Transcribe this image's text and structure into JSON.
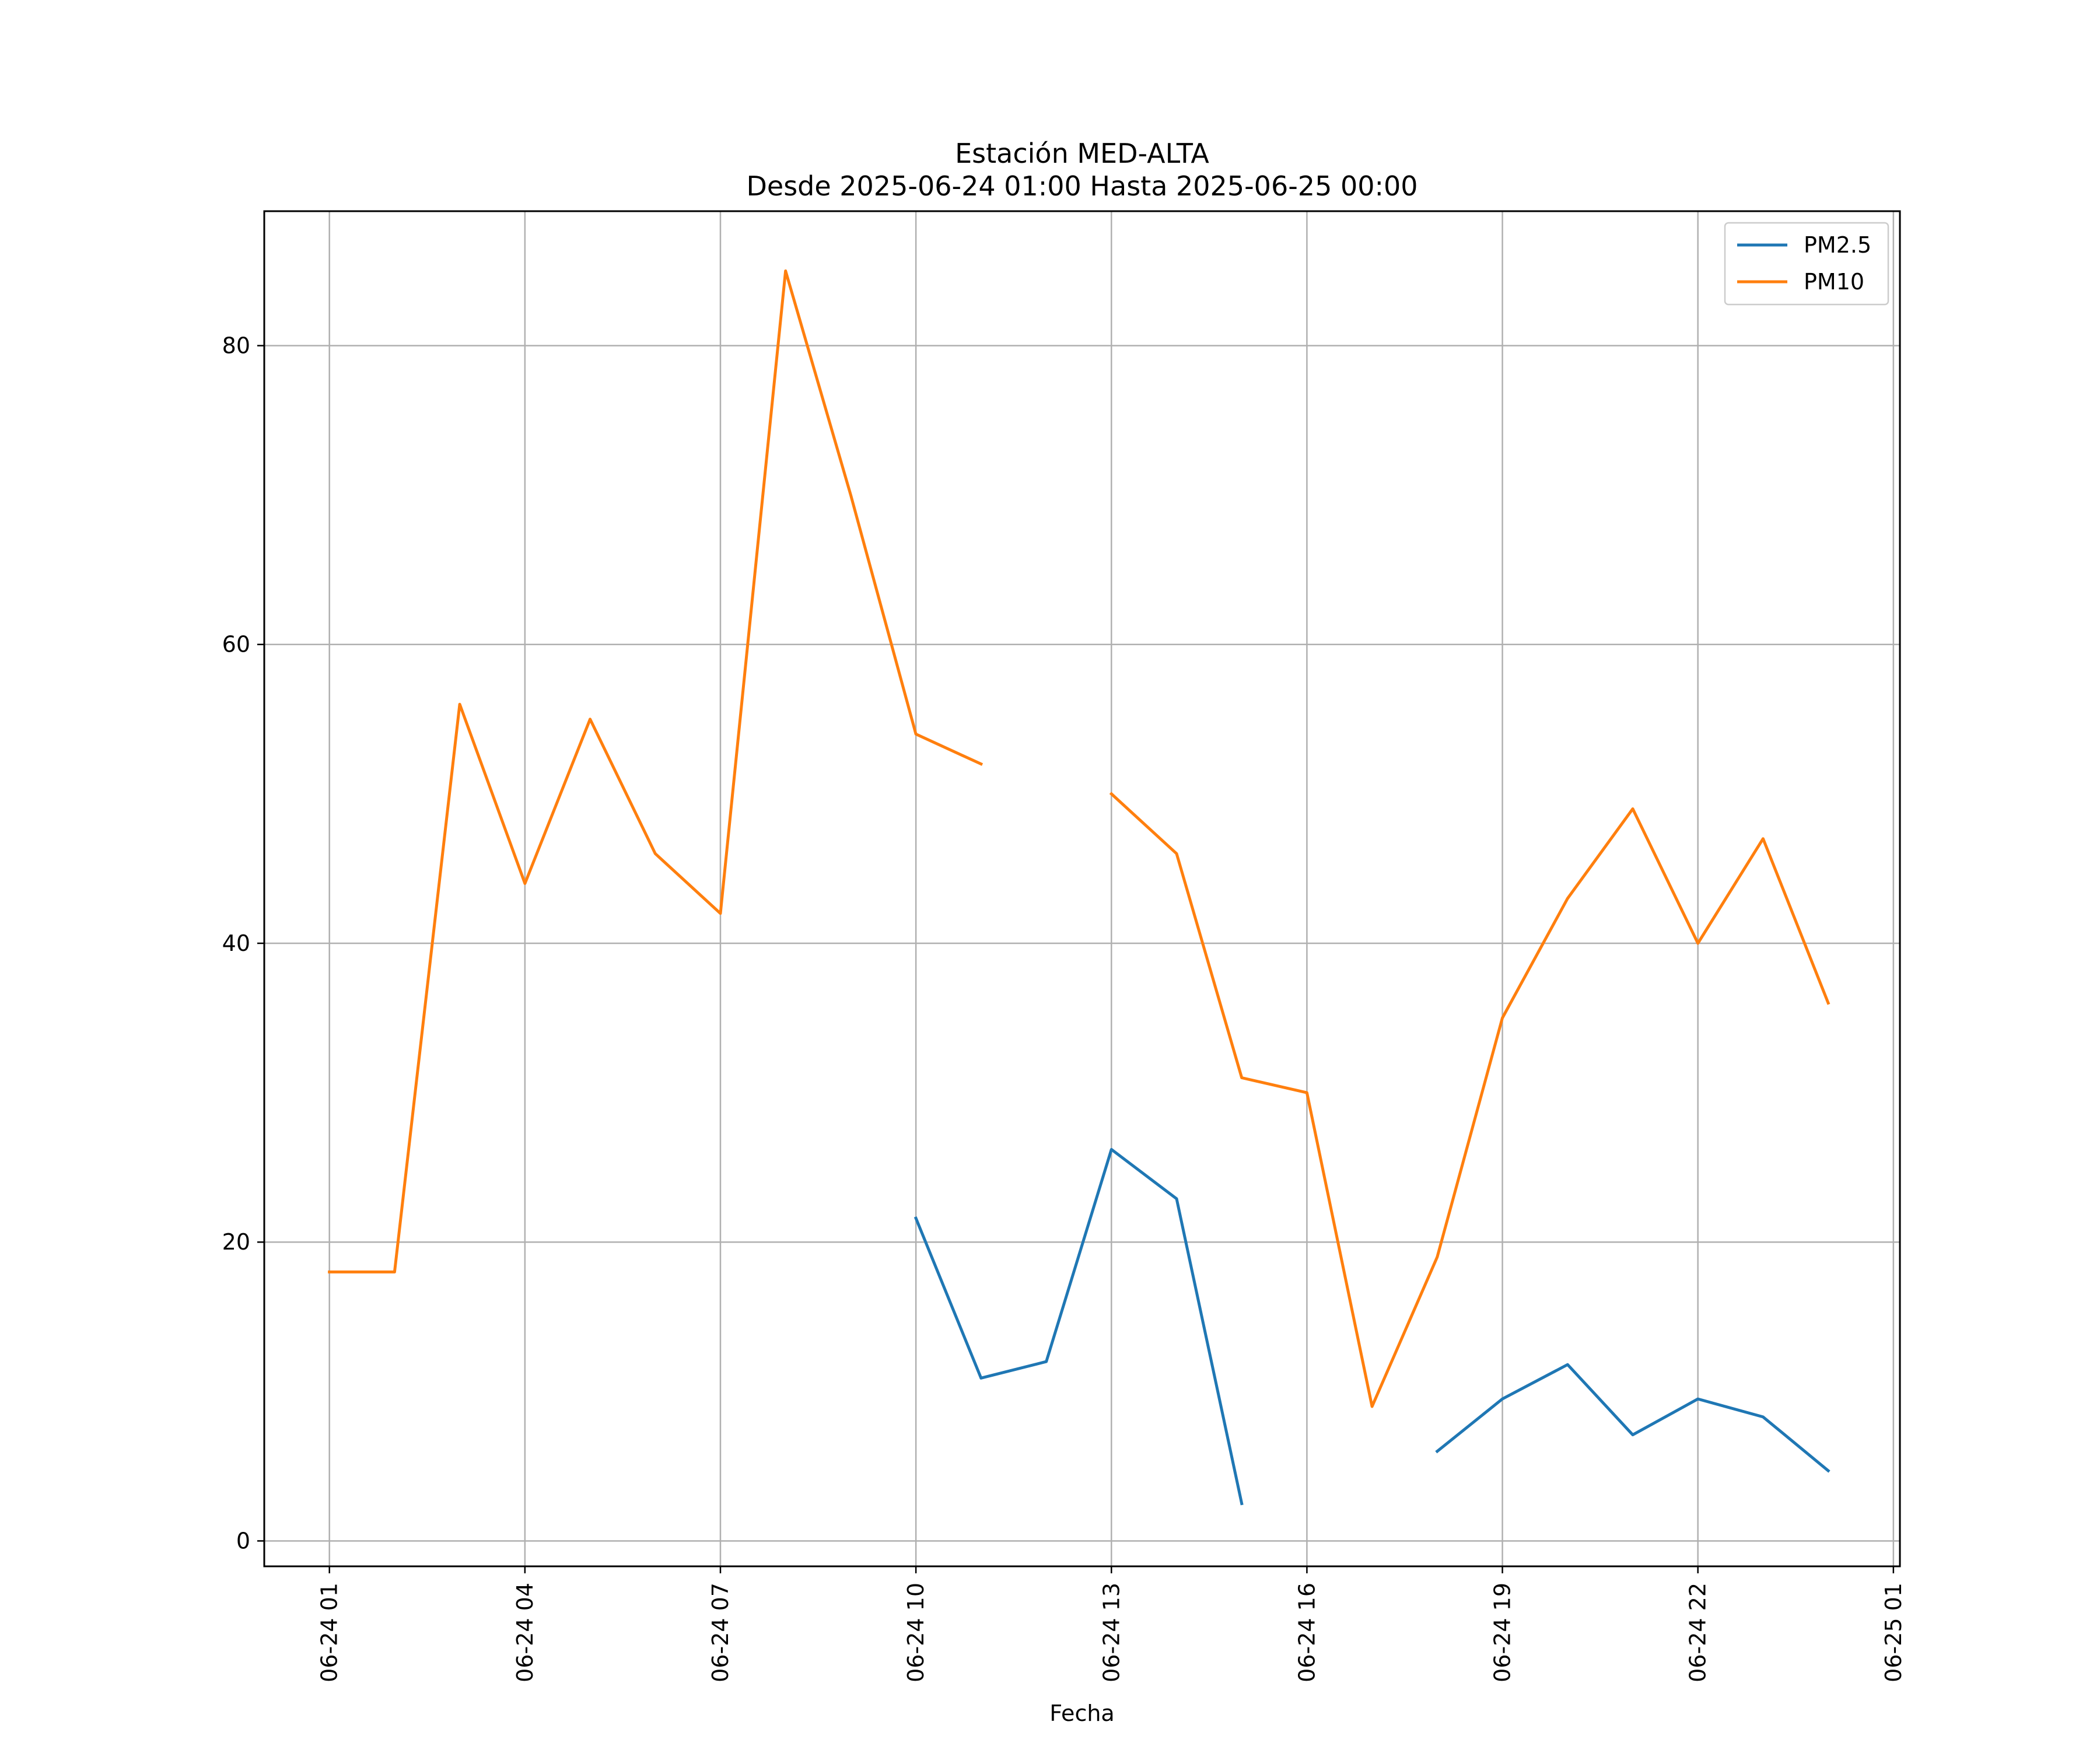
{
  "chart_data": {
    "type": "line",
    "title": "Estación MED-ALTA",
    "subtitle": "Desde 2025-06-24 01:00 Hasta 2025-06-25 00:00",
    "xlabel": "Fecha",
    "ylabel": "",
    "x": [
      "2025-06-24 01:00",
      "2025-06-24 02:00",
      "2025-06-24 03:00",
      "2025-06-24 04:00",
      "2025-06-24 05:00",
      "2025-06-24 06:00",
      "2025-06-24 07:00",
      "2025-06-24 08:00",
      "2025-06-24 09:00",
      "2025-06-24 10:00",
      "2025-06-24 11:00",
      "2025-06-24 12:00",
      "2025-06-24 13:00",
      "2025-06-24 14:00",
      "2025-06-24 15:00",
      "2025-06-24 16:00",
      "2025-06-24 17:00",
      "2025-06-24 18:00",
      "2025-06-24 19:00",
      "2025-06-24 20:00",
      "2025-06-24 21:00",
      "2025-06-24 22:00",
      "2025-06-24 23:00",
      "2025-06-25 00:00"
    ],
    "xlim": [
      "2025-06-24 00:00",
      "2025-06-25 01:06"
    ],
    "ylim": [
      -1.7,
      89
    ],
    "xticks": [
      "2025-06-24 01:00",
      "2025-06-24 04:00",
      "2025-06-24 07:00",
      "2025-06-24 10:00",
      "2025-06-24 13:00",
      "2025-06-24 16:00",
      "2025-06-24 19:00",
      "2025-06-24 22:00",
      "2025-06-25 01:00"
    ],
    "xtick_labels": [
      "06-24 01",
      "06-24 04",
      "06-24 07",
      "06-24 10",
      "06-24 13",
      "06-24 16",
      "06-24 19",
      "06-24 22",
      "06-25 01"
    ],
    "yticks": [
      0,
      20,
      40,
      60,
      80
    ],
    "ytick_labels": [
      "0",
      "20",
      "40",
      "60",
      "80"
    ],
    "grid": true,
    "legend_position": "top-right",
    "series": [
      {
        "name": "PM2.5",
        "color": "#1f77b4",
        "values": [
          null,
          null,
          null,
          null,
          null,
          null,
          null,
          null,
          null,
          21.6,
          10.9,
          12.0,
          26.2,
          22.9,
          2.5,
          null,
          null,
          6.0,
          9.5,
          11.8,
          7.1,
          9.5,
          8.3,
          4.7
        ]
      },
      {
        "name": "PM10",
        "color": "#ff7f0e",
        "values": [
          18,
          18,
          56,
          44,
          55,
          46,
          42,
          85,
          70,
          54,
          52,
          null,
          50,
          46,
          31,
          30,
          9,
          19,
          35,
          43,
          49,
          40,
          47,
          36
        ]
      }
    ]
  }
}
